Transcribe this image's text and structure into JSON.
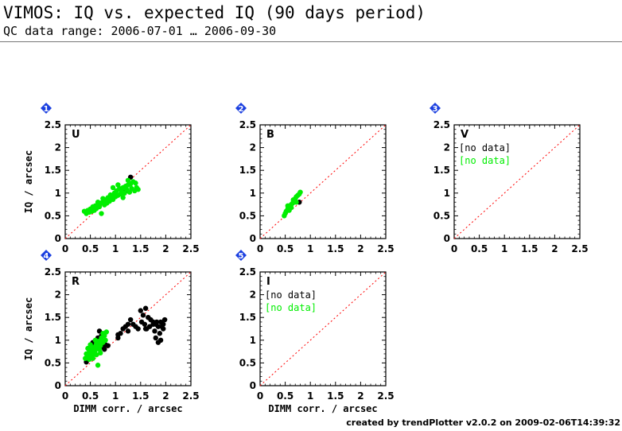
{
  "header": {
    "title": "VIMOS: IQ vs. expected IQ (90 days period)",
    "subtitle": "QC data range: 2006-07-01 … 2006-09-30"
  },
  "footer": "created by trendPlotter v2.0.2 on 2009-02-06T14:39:32",
  "colors": {
    "series_a": "#000000",
    "series_b": "#00ee00",
    "diagonal": "#ff0000",
    "badge": "#1a3fe0"
  },
  "chart_data": [
    {
      "type": "scatter",
      "panel_number": "1",
      "filter_label": "U",
      "xlim": [
        0,
        2.5
      ],
      "ylim": [
        0,
        2.5
      ],
      "xticks": [
        0,
        0.5,
        1,
        1.5,
        2,
        2.5
      ],
      "yticks": [
        0,
        0.5,
        1,
        1.5,
        2,
        2.5
      ],
      "ylabel": "IQ / arcsec",
      "xlabel": "",
      "no_data": [],
      "series": [
        {
          "color": "#000000",
          "points": [
            [
              1.3,
              1.35
            ],
            [
              1.2,
              1.05
            ]
          ]
        },
        {
          "color": "#00ee00",
          "points": [
            [
              0.38,
              0.6
            ],
            [
              0.42,
              0.55
            ],
            [
              0.45,
              0.62
            ],
            [
              0.48,
              0.58
            ],
            [
              0.5,
              0.65
            ],
            [
              0.53,
              0.6
            ],
            [
              0.55,
              0.7
            ],
            [
              0.58,
              0.62
            ],
            [
              0.6,
              0.72
            ],
            [
              0.62,
              0.66
            ],
            [
              0.65,
              0.75
            ],
            [
              0.68,
              0.7
            ],
            [
              0.7,
              0.78
            ],
            [
              0.72,
              0.55
            ],
            [
              0.75,
              0.8
            ],
            [
              0.78,
              0.74
            ],
            [
              0.8,
              0.85
            ],
            [
              0.83,
              0.78
            ],
            [
              0.85,
              0.9
            ],
            [
              0.88,
              0.82
            ],
            [
              0.9,
              0.88
            ],
            [
              0.92,
              0.95
            ],
            [
              0.95,
              0.86
            ],
            [
              0.98,
              1.0
            ],
            [
              1.0,
              0.92
            ],
            [
              1.02,
              1.05
            ],
            [
              1.05,
              0.95
            ],
            [
              1.08,
              1.1
            ],
            [
              1.1,
              0.98
            ],
            [
              1.12,
              1.05
            ],
            [
              1.15,
              1.12
            ],
            [
              1.18,
              1.0
            ],
            [
              1.2,
              1.15
            ],
            [
              1.22,
              1.08
            ],
            [
              1.25,
              1.18
            ],
            [
              1.28,
              1.02
            ],
            [
              1.3,
              1.2
            ],
            [
              1.32,
              1.1
            ],
            [
              1.35,
              1.25
            ],
            [
              1.38,
              1.05
            ],
            [
              1.4,
              1.22
            ],
            [
              1.42,
              1.12
            ],
            [
              1.45,
              1.08
            ],
            [
              1.05,
              1.18
            ],
            [
              0.9,
              0.96
            ],
            [
              0.75,
              0.88
            ],
            [
              1.15,
              0.9
            ],
            [
              0.95,
              1.12
            ],
            [
              1.25,
              1.28
            ],
            [
              0.65,
              0.8
            ]
          ]
        }
      ]
    },
    {
      "type": "scatter",
      "panel_number": "2",
      "filter_label": "B",
      "xlim": [
        0,
        2.5
      ],
      "ylim": [
        0,
        2.5
      ],
      "xticks": [
        0,
        0.5,
        1,
        1.5,
        2,
        2.5
      ],
      "yticks": [
        0,
        0.5,
        1,
        1.5,
        2,
        2.5
      ],
      "ylabel": "",
      "xlabel": "",
      "no_data": [],
      "series": [
        {
          "color": "#000000",
          "points": [
            [
              0.78,
              0.8
            ]
          ]
        },
        {
          "color": "#00ee00",
          "points": [
            [
              0.48,
              0.5
            ],
            [
              0.5,
              0.55
            ],
            [
              0.52,
              0.6
            ],
            [
              0.55,
              0.65
            ],
            [
              0.58,
              0.62
            ],
            [
              0.6,
              0.7
            ],
            [
              0.62,
              0.75
            ],
            [
              0.65,
              0.78
            ],
            [
              0.68,
              0.82
            ],
            [
              0.7,
              0.88
            ],
            [
              0.72,
              0.92
            ],
            [
              0.75,
              0.95
            ],
            [
              0.78,
              0.98
            ],
            [
              0.8,
              1.02
            ],
            [
              0.55,
              0.72
            ],
            [
              0.62,
              0.68
            ],
            [
              0.66,
              0.85
            ],
            [
              0.72,
              0.8
            ]
          ]
        }
      ]
    },
    {
      "type": "scatter",
      "panel_number": "3",
      "filter_label": "V",
      "xlim": [
        0,
        2.5
      ],
      "ylim": [
        0,
        2.5
      ],
      "xticks": [
        0,
        0.5,
        1,
        1.5,
        2,
        2.5
      ],
      "yticks": [
        0,
        0.5,
        1,
        1.5,
        2,
        2.5
      ],
      "ylabel": "",
      "xlabel": "",
      "no_data": [
        {
          "text": "[no data]",
          "color": "#000000"
        },
        {
          "text": "[no data]",
          "color": "#00ee00"
        }
      ],
      "series": []
    },
    {
      "type": "scatter",
      "panel_number": "4",
      "filter_label": "R",
      "xlim": [
        0,
        2.5
      ],
      "ylim": [
        0,
        2.5
      ],
      "xticks": [
        0,
        0.5,
        1,
        1.5,
        2,
        2.5
      ],
      "yticks": [
        0,
        0.5,
        1,
        1.5,
        2,
        2.5
      ],
      "ylabel": "IQ / arcsec",
      "xlabel": "DIMM corr. / arcsec",
      "no_data": [],
      "series": [
        {
          "color": "#000000",
          "points": [
            [
              0.42,
              0.52
            ],
            [
              0.45,
              0.6
            ],
            [
              0.5,
              0.7
            ],
            [
              0.55,
              0.78
            ],
            [
              0.6,
              0.9
            ],
            [
              0.65,
              1.05
            ],
            [
              0.68,
              1.2
            ],
            [
              0.7,
              0.95
            ],
            [
              0.72,
              1.1
            ],
            [
              0.75,
              0.85
            ],
            [
              0.78,
              0.8
            ],
            [
              0.8,
              0.9
            ],
            [
              0.85,
              0.88
            ],
            [
              1.05,
              1.05
            ],
            [
              1.1,
              1.15
            ],
            [
              1.15,
              1.25
            ],
            [
              1.2,
              1.3
            ],
            [
              1.25,
              1.2
            ],
            [
              1.3,
              1.45
            ],
            [
              1.35,
              1.35
            ],
            [
              1.4,
              1.3
            ],
            [
              1.45,
              1.25
            ],
            [
              1.5,
              1.65
            ],
            [
              1.52,
              1.4
            ],
            [
              1.55,
              1.55
            ],
            [
              1.58,
              1.35
            ],
            [
              1.6,
              1.7
            ],
            [
              1.62,
              1.25
            ],
            [
              1.65,
              1.5
            ],
            [
              1.68,
              1.3
            ],
            [
              1.7,
              1.45
            ],
            [
              1.75,
              1.35
            ],
            [
              1.78,
              1.2
            ],
            [
              1.8,
              1.05
            ],
            [
              1.82,
              1.4
            ],
            [
              1.85,
              1.3
            ],
            [
              1.88,
              1.15
            ],
            [
              1.9,
              1.4
            ],
            [
              1.92,
              1.3
            ],
            [
              1.95,
              1.35
            ],
            [
              1.98,
              1.45
            ],
            [
              1.85,
              0.95
            ],
            [
              1.9,
              1.0
            ],
            [
              1.8,
              1.35
            ],
            [
              1.95,
              1.25
            ],
            [
              1.75,
              1.4
            ],
            [
              1.6,
              1.25
            ],
            [
              1.25,
              1.35
            ],
            [
              1.05,
              1.12
            ],
            [
              0.55,
              0.95
            ]
          ]
        },
        {
          "color": "#00ee00",
          "points": [
            [
              0.4,
              0.6
            ],
            [
              0.42,
              0.7
            ],
            [
              0.45,
              0.65
            ],
            [
              0.48,
              0.75
            ],
            [
              0.5,
              0.68
            ],
            [
              0.52,
              0.8
            ],
            [
              0.55,
              0.72
            ],
            [
              0.58,
              0.85
            ],
            [
              0.6,
              0.78
            ],
            [
              0.62,
              0.92
            ],
            [
              0.65,
              0.85
            ],
            [
              0.68,
              0.98
            ],
            [
              0.7,
              0.88
            ],
            [
              0.72,
              1.05
            ],
            [
              0.75,
              0.95
            ],
            [
              0.78,
              1.1
            ],
            [
              0.8,
              1.0
            ],
            [
              0.82,
              1.18
            ],
            [
              0.65,
              0.45
            ],
            [
              0.5,
              0.9
            ],
            [
              0.55,
              0.6
            ],
            [
              0.6,
              1.0
            ],
            [
              0.45,
              0.82
            ],
            [
              0.7,
              0.72
            ],
            [
              0.75,
              1.15
            ],
            [
              0.62,
              0.68
            ],
            [
              0.58,
              0.7
            ],
            [
              0.52,
              0.62
            ],
            [
              0.48,
              0.58
            ],
            [
              0.68,
              0.8
            ]
          ]
        }
      ]
    },
    {
      "type": "scatter",
      "panel_number": "5",
      "filter_label": "I",
      "xlim": [
        0,
        2.5
      ],
      "ylim": [
        0,
        2.5
      ],
      "xticks": [
        0,
        0.5,
        1,
        1.5,
        2,
        2.5
      ],
      "yticks": [
        0,
        0.5,
        1,
        1.5,
        2,
        2.5
      ],
      "ylabel": "",
      "xlabel": "DIMM corr. / arcsec",
      "no_data": [
        {
          "text": "[no data]",
          "color": "#000000"
        },
        {
          "text": "[no data]",
          "color": "#00ee00"
        }
      ],
      "series": []
    }
  ]
}
